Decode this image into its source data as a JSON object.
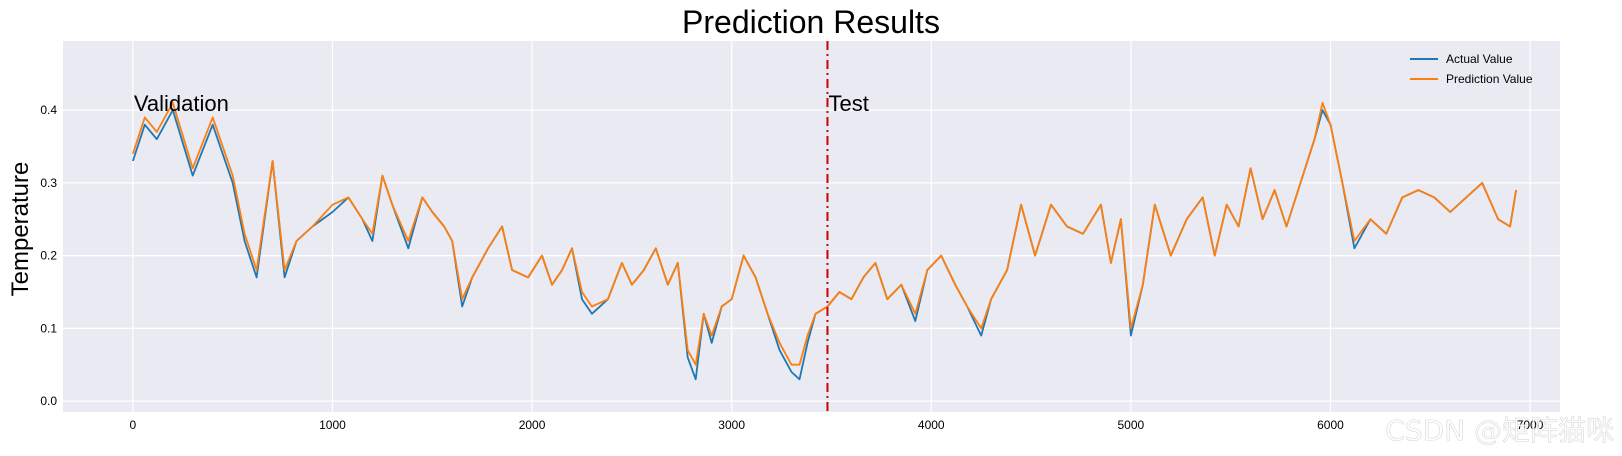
{
  "chart_data": {
    "type": "line",
    "title": "Prediction Results",
    "xlabel": "",
    "ylabel": "Temperature",
    "xlim": [
      -350,
      7150
    ],
    "ylim": [
      -0.015,
      0.495
    ],
    "xticks": [
      0,
      1000,
      2000,
      3000,
      4000,
      5000,
      6000,
      7000
    ],
    "yticks": [
      0.0,
      0.1,
      0.2,
      0.3,
      0.4
    ],
    "grid": true,
    "legend_placement": "top-right",
    "split_x": 3480,
    "split_color": "#cc0000",
    "annotations": [
      {
        "text": "Validation",
        "x": 0,
        "y": 0.4
      },
      {
        "text": "Test",
        "x": 3480,
        "y": 0.4
      }
    ],
    "series": [
      {
        "name": "Actual Value",
        "color": "#1f77b4",
        "x": [
          0,
          60,
          120,
          200,
          300,
          400,
          500,
          560,
          620,
          700,
          760,
          820,
          900,
          1000,
          1080,
          1150,
          1200,
          1250,
          1300,
          1380,
          1450,
          1500,
          1560,
          1600,
          1650,
          1700,
          1780,
          1850,
          1900,
          1980,
          2050,
          2100,
          2150,
          2200,
          2250,
          2300,
          2380,
          2450,
          2500,
          2560,
          2620,
          2680,
          2730,
          2780,
          2820,
          2860,
          2900,
          2950,
          3000,
          3060,
          3120,
          3180,
          3240,
          3300,
          3340,
          3380,
          3420,
          3480,
          3540,
          3600,
          3660,
          3720,
          3780,
          3850,
          3920,
          3980,
          4050,
          4120,
          4180,
          4250,
          4300,
          4380,
          4450,
          4520,
          4600,
          4680,
          4760,
          4850,
          4900,
          4950,
          5000,
          5060,
          5120,
          5200,
          5280,
          5360,
          5420,
          5480,
          5540,
          5600,
          5660,
          5720,
          5780,
          5850,
          5920,
          5960,
          6000,
          6060,
          6120,
          6200,
          6280,
          6360,
          6440,
          6520,
          6600,
          6680,
          6760,
          6840,
          6900,
          6930
        ],
        "values": [
          0.33,
          0.38,
          0.36,
          0.4,
          0.31,
          0.38,
          0.3,
          0.22,
          0.17,
          0.33,
          0.17,
          0.22,
          0.24,
          0.26,
          0.28,
          0.25,
          0.22,
          0.31,
          0.27,
          0.21,
          0.28,
          0.26,
          0.24,
          0.22,
          0.13,
          0.17,
          0.21,
          0.24,
          0.18,
          0.17,
          0.2,
          0.16,
          0.18,
          0.21,
          0.14,
          0.12,
          0.14,
          0.19,
          0.16,
          0.18,
          0.21,
          0.16,
          0.19,
          0.06,
          0.03,
          0.12,
          0.08,
          0.13,
          0.14,
          0.2,
          0.17,
          0.12,
          0.07,
          0.04,
          0.03,
          0.08,
          0.12,
          0.13,
          0.15,
          0.14,
          0.17,
          0.19,
          0.14,
          0.16,
          0.11,
          0.18,
          0.2,
          0.16,
          0.13,
          0.09,
          0.14,
          0.18,
          0.27,
          0.2,
          0.27,
          0.24,
          0.23,
          0.27,
          0.19,
          0.25,
          0.09,
          0.16,
          0.27,
          0.2,
          0.25,
          0.28,
          0.2,
          0.27,
          0.24,
          0.32,
          0.25,
          0.29,
          0.24,
          0.3,
          0.36,
          0.4,
          0.38,
          0.3,
          0.21,
          0.25,
          0.23,
          0.28,
          0.29,
          0.28,
          0.26,
          0.28,
          0.3,
          0.25,
          0.24,
          0.29
        ]
      },
      {
        "name": "Prediction Value",
        "color": "#ff7f0e",
        "x": [
          0,
          60,
          120,
          200,
          300,
          400,
          500,
          560,
          620,
          700,
          760,
          820,
          900,
          1000,
          1080,
          1150,
          1200,
          1250,
          1300,
          1380,
          1450,
          1500,
          1560,
          1600,
          1650,
          1700,
          1780,
          1850,
          1900,
          1980,
          2050,
          2100,
          2150,
          2200,
          2250,
          2300,
          2380,
          2450,
          2500,
          2560,
          2620,
          2680,
          2730,
          2780,
          2820,
          2860,
          2900,
          2950,
          3000,
          3060,
          3120,
          3180,
          3240,
          3300,
          3340,
          3380,
          3420,
          3480,
          3540,
          3600,
          3660,
          3720,
          3780,
          3850,
          3920,
          3980,
          4050,
          4120,
          4180,
          4250,
          4300,
          4380,
          4450,
          4520,
          4600,
          4680,
          4760,
          4850,
          4900,
          4950,
          5000,
          5060,
          5120,
          5200,
          5280,
          5360,
          5420,
          5480,
          5540,
          5600,
          5660,
          5720,
          5780,
          5850,
          5920,
          5960,
          6000,
          6060,
          6120,
          6200,
          6280,
          6360,
          6440,
          6520,
          6600,
          6680,
          6760,
          6840,
          6900,
          6930
        ],
        "values": [
          0.34,
          0.39,
          0.37,
          0.41,
          0.32,
          0.39,
          0.31,
          0.23,
          0.18,
          0.33,
          0.18,
          0.22,
          0.24,
          0.27,
          0.28,
          0.25,
          0.23,
          0.31,
          0.27,
          0.22,
          0.28,
          0.26,
          0.24,
          0.22,
          0.14,
          0.17,
          0.21,
          0.24,
          0.18,
          0.17,
          0.2,
          0.16,
          0.18,
          0.21,
          0.15,
          0.13,
          0.14,
          0.19,
          0.16,
          0.18,
          0.21,
          0.16,
          0.19,
          0.07,
          0.05,
          0.12,
          0.09,
          0.13,
          0.14,
          0.2,
          0.17,
          0.12,
          0.08,
          0.05,
          0.05,
          0.09,
          0.12,
          0.13,
          0.15,
          0.14,
          0.17,
          0.19,
          0.14,
          0.16,
          0.12,
          0.18,
          0.2,
          0.16,
          0.13,
          0.1,
          0.14,
          0.18,
          0.27,
          0.2,
          0.27,
          0.24,
          0.23,
          0.27,
          0.19,
          0.25,
          0.1,
          0.16,
          0.27,
          0.2,
          0.25,
          0.28,
          0.2,
          0.27,
          0.24,
          0.32,
          0.25,
          0.29,
          0.24,
          0.3,
          0.36,
          0.41,
          0.38,
          0.3,
          0.22,
          0.25,
          0.23,
          0.28,
          0.29,
          0.28,
          0.26,
          0.28,
          0.3,
          0.25,
          0.24,
          0.29
        ]
      }
    ]
  },
  "watermark": "CSDN @矩阵猫咪"
}
